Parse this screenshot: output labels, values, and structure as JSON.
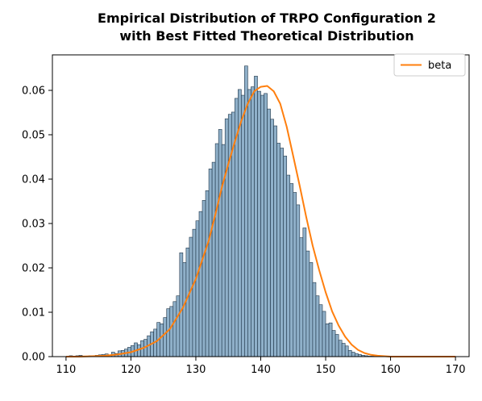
{
  "chart_data": {
    "type": "bar",
    "title_lines": [
      "Empirical Distribution of TRPO Configuration 2",
      "with Best Fitted Theoretical Distribution"
    ],
    "xlabel": "",
    "ylabel": "",
    "xlim": [
      107.9,
      172.1
    ],
    "ylim": [
      0,
      0.068
    ],
    "x_ticks": [
      110,
      120,
      130,
      140,
      150,
      160,
      170
    ],
    "y_ticks": [
      0.0,
      0.01,
      0.02,
      0.03,
      0.04,
      0.05,
      0.06
    ],
    "y_tick_labels": [
      "0.00",
      "0.01",
      "0.02",
      "0.03",
      "0.04",
      "0.05",
      "0.06"
    ],
    "grid": false,
    "legend_position": "top-right",
    "histogram": {
      "bin_edges_start": 110.5,
      "bin_width": 0.5,
      "values": [
        0.0002,
        0.0001,
        0.0002,
        0.0003,
        0.0001,
        0.0001,
        0.0002,
        0.0002,
        0.0003,
        0.0004,
        0.0005,
        0.0006,
        0.0004,
        0.001,
        0.0007,
        0.0013,
        0.0014,
        0.0017,
        0.0021,
        0.0025,
        0.0031,
        0.0027,
        0.0036,
        0.0039,
        0.0047,
        0.0056,
        0.0062,
        0.0077,
        0.0074,
        0.0088,
        0.0108,
        0.0113,
        0.0124,
        0.0137,
        0.0234,
        0.0212,
        0.0245,
        0.0269,
        0.0287,
        0.0306,
        0.0327,
        0.0352,
        0.0374,
        0.0423,
        0.0438,
        0.048,
        0.0512,
        0.0478,
        0.0536,
        0.0546,
        0.0551,
        0.0582,
        0.0602,
        0.0589,
        0.0655,
        0.0602,
        0.0608,
        0.0632,
        0.0598,
        0.0589,
        0.0593,
        0.0558,
        0.0535,
        0.052,
        0.0481,
        0.047,
        0.0452,
        0.0409,
        0.039,
        0.037,
        0.0342,
        0.0268,
        0.029,
        0.0238,
        0.0212,
        0.0167,
        0.0137,
        0.0117,
        0.0102,
        0.0074,
        0.0076,
        0.0059,
        0.005,
        0.0037,
        0.003,
        0.0024,
        0.0014,
        0.001,
        0.0007,
        0.0005,
        0.0003,
        0.0002,
        0.0001,
        0.0001
      ],
      "fill_color": "#8fb0c9",
      "edge_color": "#1f3548"
    },
    "series": [
      {
        "name": "beta",
        "color": "#ff7f0e",
        "x": [
          110,
          112,
          114,
          116,
          118,
          120,
          122,
          124,
          126,
          128,
          130,
          132,
          133,
          134,
          135,
          136,
          137,
          138,
          139,
          140,
          141,
          142,
          143,
          144,
          145,
          146,
          147,
          148,
          149,
          150,
          151,
          152,
          153,
          154,
          155,
          156,
          157,
          158,
          160,
          162,
          164,
          166,
          168,
          170
        ],
        "y": [
          0.0,
          0.0,
          0.0001,
          0.0002,
          0.0005,
          0.001,
          0.002,
          0.0035,
          0.0062,
          0.011,
          0.0175,
          0.0262,
          0.032,
          0.0381,
          0.0434,
          0.0484,
          0.0531,
          0.057,
          0.0598,
          0.0608,
          0.061,
          0.0598,
          0.057,
          0.0518,
          0.0452,
          0.0385,
          0.0315,
          0.025,
          0.0195,
          0.0145,
          0.0102,
          0.007,
          0.0045,
          0.0027,
          0.0015,
          0.0008,
          0.0004,
          0.0002,
          0.0,
          0.0,
          0.0,
          0.0,
          0.0,
          0.0
        ]
      }
    ]
  }
}
